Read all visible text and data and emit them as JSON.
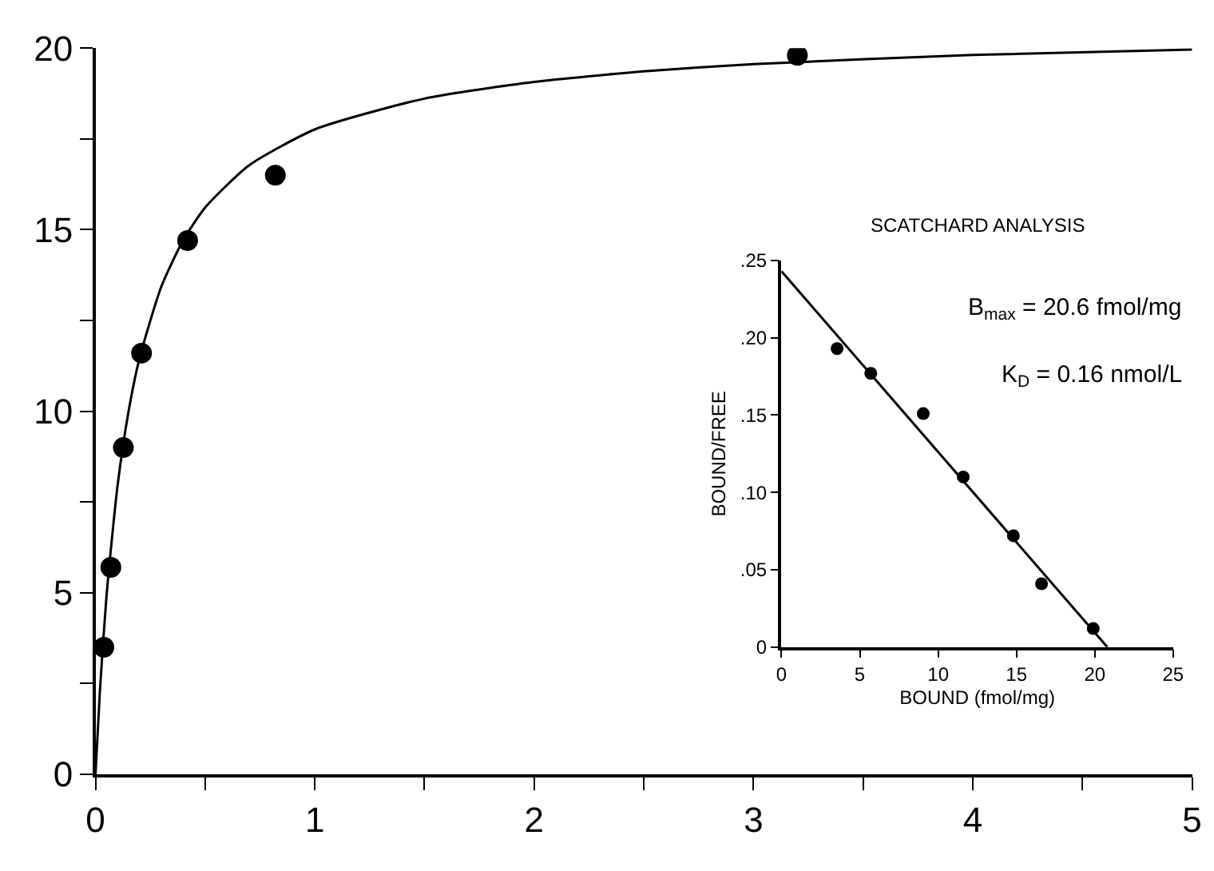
{
  "chart_data": [
    {
      "type": "scatter",
      "marker": "circle",
      "xlim": [
        0,
        5
      ],
      "ylim": [
        0,
        20
      ],
      "xticks": [
        0,
        {
          "value": 0.5,
          "label": null
        },
        1,
        {
          "value": 1.5,
          "label": null
        },
        2,
        {
          "value": 2.5,
          "label": null
        },
        3,
        {
          "value": 3.5,
          "label": null
        },
        4,
        {
          "value": 4.5,
          "label": null
        },
        5
      ],
      "yticks": [
        0,
        {
          "value": 2.5,
          "label": null
        },
        5,
        {
          "value": 7.5,
          "label": null
        },
        10,
        {
          "value": 12.5,
          "label": null
        },
        15,
        {
          "value": 17.5,
          "label": null
        },
        20
      ],
      "series": [
        {
          "color": "#000000",
          "x": [
            0.038,
            0.07,
            0.127,
            0.21,
            0.42,
            0.82,
            3.2
          ],
          "values": [
            3.5,
            5.7,
            9.0,
            11.6,
            14.7,
            16.5,
            19.8
          ]
        },
        {
          "type": "line",
          "marker": "none",
          "color": "#000000",
          "x": [
            0,
            0.02,
            0.05,
            0.1,
            0.15,
            0.2,
            0.3,
            0.4,
            0.5,
            0.7,
            1,
            1.5,
            2,
            2.5,
            3,
            4,
            5
          ],
          "values": [
            0,
            2.29,
            4.9,
            7.92,
            9.97,
            11.44,
            13.43,
            14.71,
            15.61,
            16.77,
            17.76,
            18.61,
            19.07,
            19.36,
            19.56,
            19.81,
            19.96
          ]
        }
      ]
    },
    {
      "type": "scatter",
      "marker": "circle",
      "title": "SCATCHARD ANALYSIS",
      "xlabel": "BOUND (fmol/mg)",
      "ylabel": "BOUND/FREE",
      "annotations": [
        "B$_{max}$ = 20.6 fmol/mg",
        "K$_{D}$ = 0.16 nmol/L"
      ],
      "xlim": [
        0,
        25
      ],
      "ylim": [
        0,
        0.25
      ],
      "xticks": [
        0,
        5,
        10,
        15,
        20,
        25
      ],
      "yticks": [
        0,
        {
          "value": 0.05,
          "label": ".05"
        },
        {
          "value": 0.1,
          "label": ".10"
        },
        {
          "value": 0.15,
          "label": ".15"
        },
        {
          "value": 0.2,
          "label": ".20"
        },
        {
          "value": 0.25,
          "label": ".25"
        }
      ],
      "series": [
        {
          "color": "#000000",
          "x": [
            3.55,
            5.7,
            9.05,
            11.6,
            14.8,
            16.6,
            19.9
          ],
          "values": [
            0.193,
            0.177,
            0.151,
            0.11,
            0.072,
            0.041,
            0.012
          ]
        },
        {
          "type": "line",
          "marker": "none",
          "color": "#000000",
          "x": [
            0,
            20.8
          ],
          "values": [
            0.243,
            0
          ]
        }
      ]
    }
  ]
}
